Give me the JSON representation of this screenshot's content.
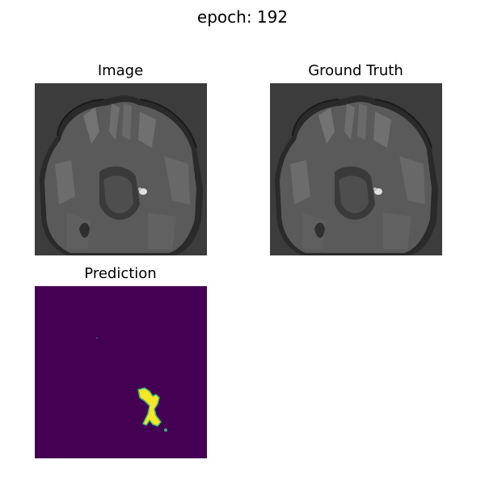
{
  "figure": {
    "title": "epoch: 192"
  },
  "panels": [
    {
      "title": "Image",
      "kind": "mri-slice"
    },
    {
      "title": "Ground Truth",
      "kind": "mri-slice"
    },
    {
      "title": "Prediction",
      "kind": "segmentation-mask"
    }
  ],
  "colors": {
    "mri_background": "#3c3c3c",
    "mask_background": "#440154",
    "mask_foreground": "#fde725",
    "mask_edge": "#35b779"
  }
}
